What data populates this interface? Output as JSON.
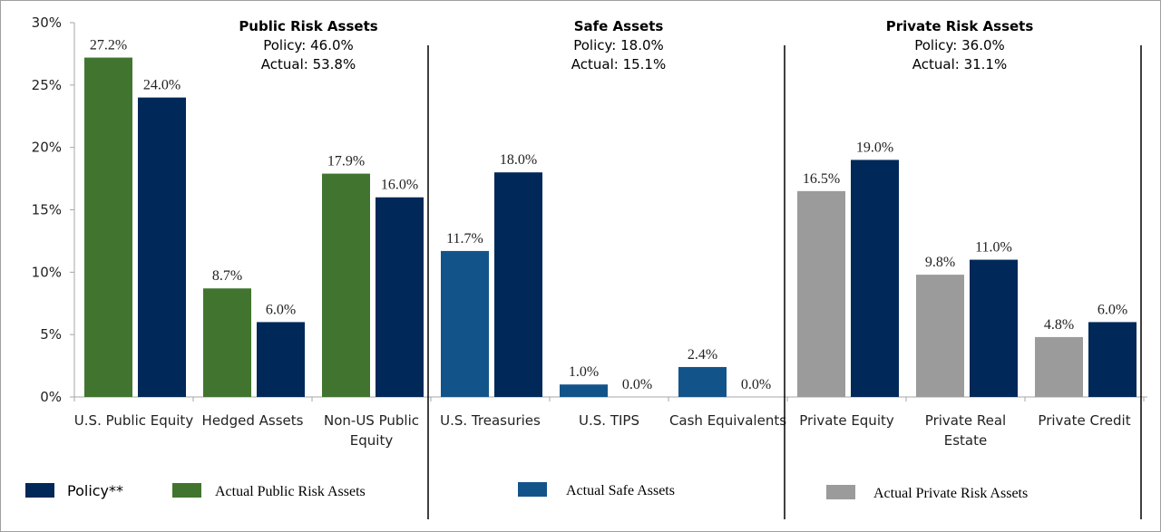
{
  "chart_data": {
    "type": "bar",
    "ylim": [
      0,
      30
    ],
    "yticks": [
      "0%",
      "5%",
      "10%",
      "15%",
      "20%",
      "25%",
      "30%"
    ],
    "grid": false,
    "legend_placement": "bottom",
    "categories": [
      "U.S. Public Equity",
      "Hedged Assets",
      "Non-US Public Equity",
      "U.S. Treasuries",
      "U.S. TIPS",
      "Cash Equivalents",
      "Private Equity",
      "Private Real Estate",
      "Private Credit"
    ],
    "category_lines": [
      [
        "U.S. Public Equity"
      ],
      [
        "Hedged Assets"
      ],
      [
        "Non-US Public",
        "Equity"
      ],
      [
        "U.S. Treasuries"
      ],
      [
        "U.S. TIPS"
      ],
      [
        "Cash Equivalents"
      ],
      [
        "Private Equity"
      ],
      [
        "Private Real",
        "Estate"
      ],
      [
        "Private Credit"
      ]
    ],
    "actual": [
      27.2,
      8.7,
      17.9,
      11.7,
      1.0,
      2.4,
      16.5,
      9.8,
      4.8
    ],
    "policy": [
      24.0,
      6.0,
      16.0,
      18.0,
      0.0,
      0.0,
      19.0,
      11.0,
      6.0
    ],
    "actual_labels": [
      "27.2%",
      "8.7%",
      "17.9%",
      "11.7%",
      "1.0%",
      "2.4%",
      "16.5%",
      "9.8%",
      "4.8%"
    ],
    "policy_labels": [
      "24.0%",
      "6.0%",
      "16.0%",
      "18.0%",
      "0.0%",
      "0.0%",
      "19.0%",
      "11.0%",
      "6.0%"
    ],
    "actual_group": [
      0,
      0,
      0,
      1,
      1,
      1,
      2,
      2,
      2
    ],
    "groups": [
      {
        "title": "Public Risk Assets",
        "policy": "Policy:  46.0%",
        "actual": "Actual:  53.8%"
      },
      {
        "title": "Safe Assets",
        "policy": "Policy:  18.0%",
        "actual": "Actual:  15.1%"
      },
      {
        "title": "Private Risk Assets",
        "policy": "Policy:  36.0%",
        "actual": "Actual:  31.1%"
      }
    ],
    "legend": [
      "Policy**",
      "Actual Public Risk Assets",
      "Actual Safe Assets",
      "Actual Private Risk Assets"
    ],
    "colors": {
      "policy": "#002858",
      "public": "#41752f",
      "safe": "#12548a",
      "private": "#9b9b9b"
    }
  }
}
